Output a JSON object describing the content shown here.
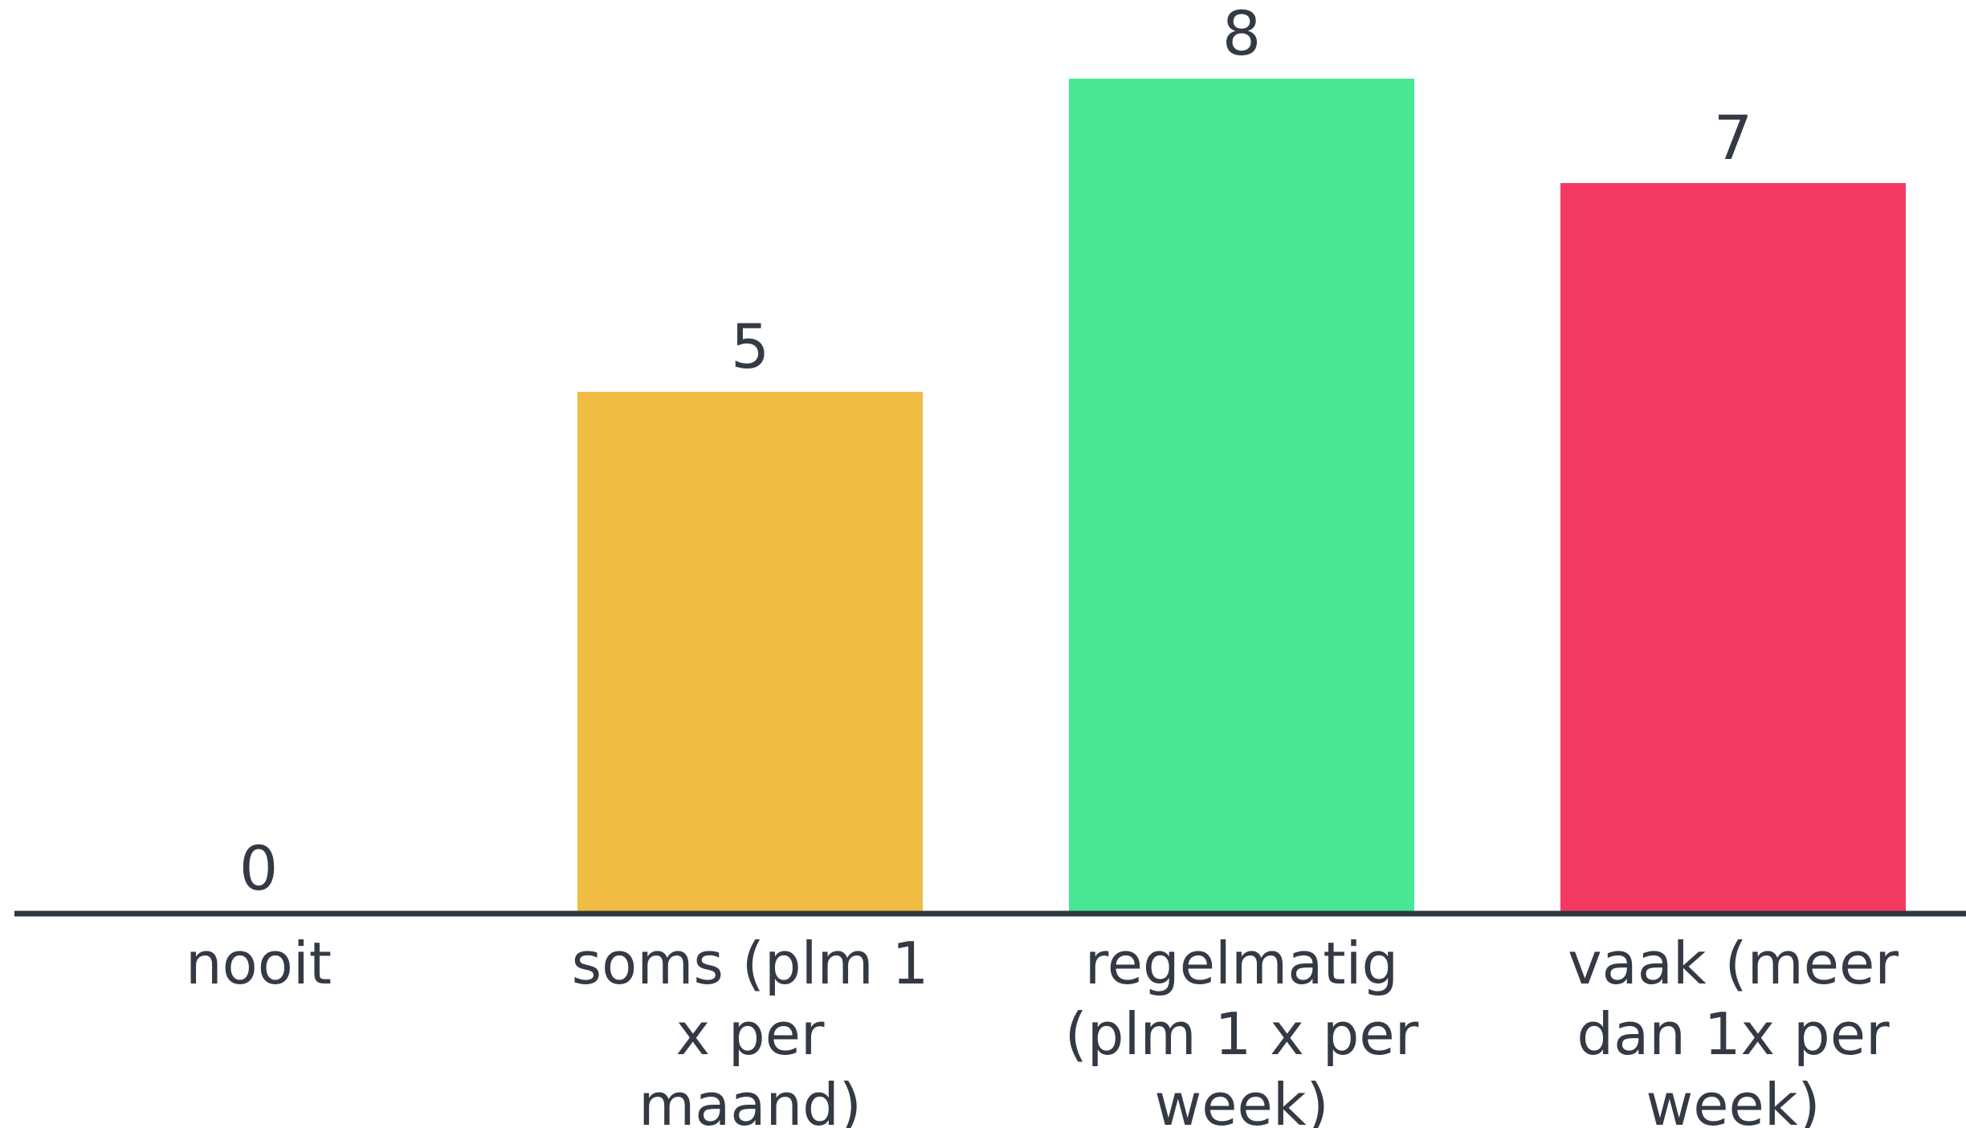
{
  "chart_data": {
    "type": "bar",
    "categories": [
      [
        "nooit"
      ],
      [
        "soms (plm 1",
        "x per",
        "maand)"
      ],
      [
        "regelmatig",
        "(plm 1 x per",
        "week)"
      ],
      [
        "vaak (meer",
        "dan 1x per",
        "week)"
      ]
    ],
    "values": [
      0,
      5,
      8,
      7
    ],
    "value_labels": [
      "0",
      "5",
      "8",
      "7"
    ],
    "colors": [
      "#f0bd42",
      "#f0bd42",
      "#48e795",
      "#f43a62"
    ],
    "axis_color": "#2f3640",
    "text_color": "#333a45",
    "grid": false,
    "legend": "none",
    "ylim": [
      0,
      8
    ]
  }
}
